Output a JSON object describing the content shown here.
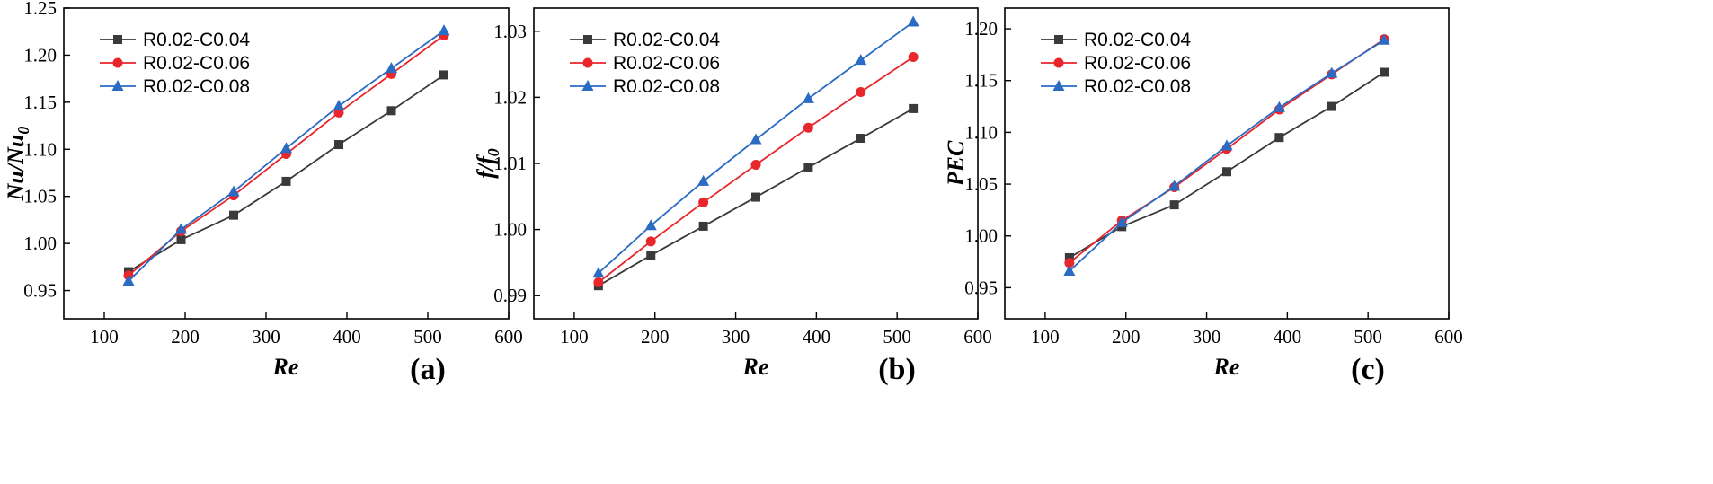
{
  "chart_data": [
    {
      "type": "line",
      "panel_label": "(a)",
      "xlabel": "Re",
      "ylabel_main": "Nu/Nu",
      "ylabel_sub": "0",
      "xlim": [
        50,
        600
      ],
      "ylim": [
        0.92,
        1.25
      ],
      "xticks": [
        100,
        200,
        300,
        400,
        500,
        600
      ],
      "xtick_labels": [
        "100",
        "200",
        "300",
        "400",
        "500",
        "600"
      ],
      "yticks": [
        0.95,
        1.0,
        1.05,
        1.1,
        1.15,
        1.2,
        1.25
      ],
      "ytick_labels": [
        "0.95",
        "1.00",
        "1.05",
        "1.10",
        "1.15",
        "1.20",
        "1.25"
      ],
      "legend_position": "top-left",
      "x": [
        130,
        195,
        260,
        325,
        390,
        455,
        520
      ],
      "series": [
        {
          "name": "R0.02-C0.04",
          "color": "#3a3a3a",
          "marker": "square",
          "values": [
            0.97,
            1.004,
            1.03,
            1.066,
            1.105,
            1.141,
            1.179
          ]
        },
        {
          "name": "R0.02-C0.06",
          "color": "#e8262b",
          "marker": "circle",
          "values": [
            0.966,
            1.013,
            1.051,
            1.095,
            1.139,
            1.18,
            1.221
          ]
        },
        {
          "name": "R0.02-C0.08",
          "color": "#2a6cc4",
          "marker": "triangle",
          "values": [
            0.96,
            1.015,
            1.055,
            1.101,
            1.146,
            1.186,
            1.226
          ]
        }
      ]
    },
    {
      "type": "line",
      "panel_label": "(b)",
      "xlabel": "Re",
      "ylabel_main": "f/f",
      "ylabel_sub": "0",
      "xlim": [
        50,
        600
      ],
      "ylim": [
        0.9865,
        1.0335
      ],
      "xticks": [
        100,
        200,
        300,
        400,
        500,
        600
      ],
      "xtick_labels": [
        "100",
        "200",
        "300",
        "400",
        "500",
        "600"
      ],
      "yticks": [
        0.99,
        1.0,
        1.01,
        1.02,
        1.03
      ],
      "ytick_labels": [
        "0.99",
        "1.00",
        "1.01",
        "1.02",
        "1.03"
      ],
      "legend_position": "top-left",
      "x": [
        130,
        195,
        260,
        325,
        390,
        455,
        520
      ],
      "series": [
        {
          "name": "R0.02-C0.04",
          "color": "#3a3a3a",
          "marker": "square",
          "values": [
            0.9915,
            0.9961,
            1.0005,
            1.0049,
            1.0094,
            1.0138,
            1.0183
          ]
        },
        {
          "name": "R0.02-C0.06",
          "color": "#e8262b",
          "marker": "circle",
          "values": [
            0.992,
            0.9982,
            1.0041,
            1.0098,
            1.0154,
            1.0208,
            1.0261
          ]
        },
        {
          "name": "R0.02-C0.08",
          "color": "#2a6cc4",
          "marker": "triangle",
          "values": [
            0.9934,
            1.0006,
            1.0073,
            1.0136,
            1.0198,
            1.0256,
            1.0314
          ]
        }
      ]
    },
    {
      "type": "line",
      "panel_label": "(c)",
      "xlabel": "Re",
      "ylabel_main": "PEC",
      "ylabel_sub": "",
      "xlim": [
        50,
        600
      ],
      "ylim": [
        0.92,
        1.22
      ],
      "xticks": [
        100,
        200,
        300,
        400,
        500,
        600
      ],
      "xtick_labels": [
        "100",
        "200",
        "300",
        "400",
        "500",
        "600"
      ],
      "yticks": [
        0.95,
        1.0,
        1.05,
        1.1,
        1.15,
        1.2
      ],
      "ytick_labels": [
        "0.95",
        "1.00",
        "1.05",
        "1.10",
        "1.15",
        "1.20"
      ],
      "legend_position": "top-left",
      "x": [
        130,
        195,
        260,
        325,
        390,
        455,
        520
      ],
      "series": [
        {
          "name": "R0.02-C0.04",
          "color": "#3a3a3a",
          "marker": "square",
          "values": [
            0.979,
            1.009,
            1.03,
            1.062,
            1.095,
            1.125,
            1.158
          ]
        },
        {
          "name": "R0.02-C0.06",
          "color": "#e8262b",
          "marker": "circle",
          "values": [
            0.974,
            1.015,
            1.047,
            1.084,
            1.122,
            1.156,
            1.19
          ]
        },
        {
          "name": "R0.02-C0.08",
          "color": "#2a6cc4",
          "marker": "triangle",
          "values": [
            0.966,
            1.013,
            1.048,
            1.087,
            1.124,
            1.157,
            1.189
          ]
        }
      ]
    }
  ]
}
